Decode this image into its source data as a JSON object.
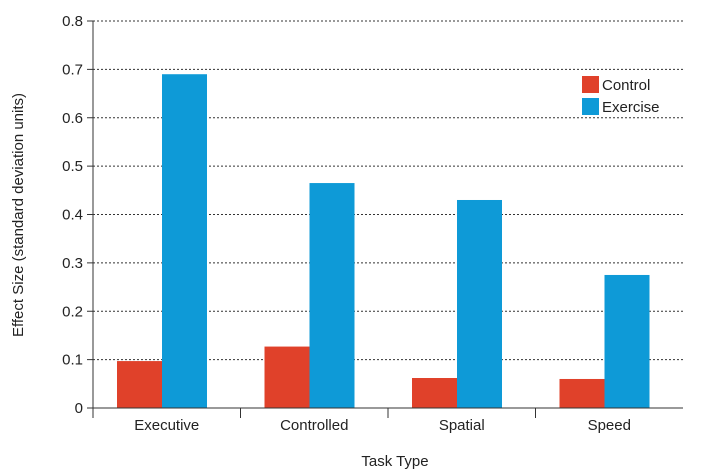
{
  "chart_data": {
    "type": "bar",
    "title": "",
    "xlabel": "Task Type",
    "ylabel": "Effect Size (standard deviation units)",
    "categories": [
      "Executive",
      "Controlled",
      "Spatial",
      "Speed"
    ],
    "series": [
      {
        "name": "Control",
        "color": "#e0412a",
        "values": [
          0.097,
          0.127,
          0.062,
          0.06
        ]
      },
      {
        "name": "Exercise",
        "color": "#0e9ad7",
        "values": [
          0.69,
          0.465,
          0.43,
          0.275
        ]
      }
    ],
    "ylim": [
      0,
      0.8
    ],
    "yticks": [
      "0",
      "0.1",
      "0.2",
      "0.3",
      "0.4",
      "0.5",
      "0.6",
      "0.7",
      "0.8"
    ],
    "grid": true,
    "grid_style": "dotted",
    "legend_position": "top-right"
  }
}
